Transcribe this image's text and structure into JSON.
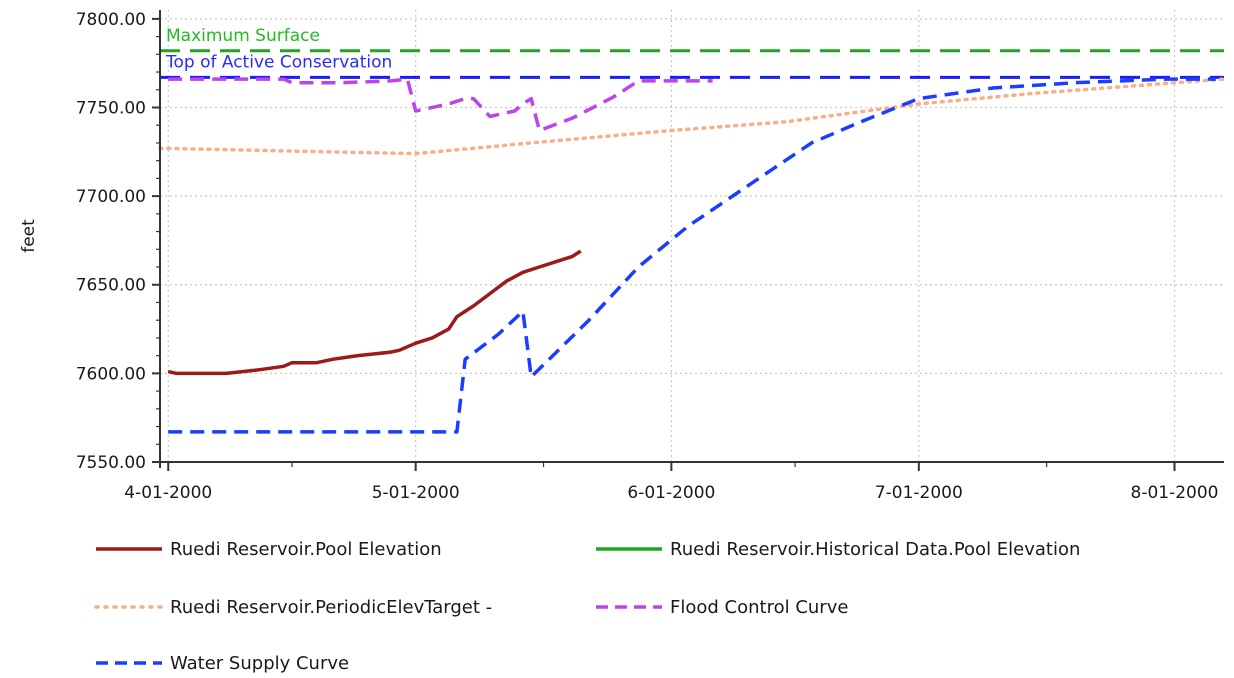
{
  "chart_data": {
    "type": "line",
    "xlabel": "",
    "ylabel": "feet",
    "xlim": [
      "2000-03-31",
      "2000-08-07"
    ],
    "ylim": [
      7550,
      7805
    ],
    "x_ticks": [
      {
        "date": "2000-04-01",
        "label": "4-01-2000"
      },
      {
        "date": "2000-05-01",
        "label": "5-01-2000"
      },
      {
        "date": "2000-06-01",
        "label": "6-01-2000"
      },
      {
        "date": "2000-07-01",
        "label": "7-01-2000"
      },
      {
        "date": "2000-08-01",
        "label": "8-01-2000"
      }
    ],
    "y_ticks": [
      {
        "value": 7550,
        "label": "7550.00"
      },
      {
        "value": 7600,
        "label": "7600.00"
      },
      {
        "value": 7650,
        "label": "7650.00"
      },
      {
        "value": 7700,
        "label": "7700.00"
      },
      {
        "value": 7750,
        "label": "7750.00"
      },
      {
        "value": 7800,
        "label": "7800.00"
      }
    ],
    "grid": true,
    "reference_lines": [
      {
        "name": "Maximum Surface",
        "value": 7782,
        "color": "#1fa51f",
        "text_color": "#22bb22"
      },
      {
        "name": "Top of Active Conservation",
        "value": 7767,
        "color": "#1a1aff",
        "text_color": "#2a2aff"
      }
    ],
    "series": [
      {
        "name": "Ruedi Reservoir.Pool Elevation",
        "color": "#9b1a1a",
        "style": "solid",
        "points": [
          [
            "2000-04-01",
            7601
          ],
          [
            "2000-04-02",
            7600
          ],
          [
            "2000-04-05",
            7600
          ],
          [
            "2000-04-08",
            7600
          ],
          [
            "2000-04-10",
            7601
          ],
          [
            "2000-04-12",
            7602
          ],
          [
            "2000-04-15",
            7604
          ],
          [
            "2000-04-16",
            7606
          ],
          [
            "2000-04-19",
            7606
          ],
          [
            "2000-04-21",
            7608
          ],
          [
            "2000-04-24",
            7610
          ],
          [
            "2000-04-26",
            7611
          ],
          [
            "2000-04-28",
            7612
          ],
          [
            "2000-04-29",
            7613
          ],
          [
            "2000-05-01",
            7617
          ],
          [
            "2000-05-03",
            7620
          ],
          [
            "2000-05-05",
            7625
          ],
          [
            "2000-05-06",
            7632
          ],
          [
            "2000-05-08",
            7638
          ],
          [
            "2000-05-10",
            7645
          ],
          [
            "2000-05-12",
            7652
          ],
          [
            "2000-05-14",
            7657
          ],
          [
            "2000-05-16",
            7660
          ],
          [
            "2000-05-18",
            7663
          ],
          [
            "2000-05-20",
            7666
          ],
          [
            "2000-05-21",
            7669
          ]
        ]
      },
      {
        "name": "Ruedi Reservoir.Historical Data.Pool Elevation",
        "color": "#1fa51f",
        "style": "solid",
        "points": []
      },
      {
        "name": "Ruedi Reservoir.PeriodicElevTarget -",
        "color": "#f4b08a",
        "style": "dotted",
        "points": [
          [
            "2000-03-31",
            7727
          ],
          [
            "2000-04-10",
            7726
          ],
          [
            "2000-04-20",
            7725
          ],
          [
            "2000-05-01",
            7724
          ],
          [
            "2000-05-15",
            7730
          ],
          [
            "2000-06-01",
            7737
          ],
          [
            "2000-06-15",
            7742
          ],
          [
            "2000-07-01",
            7752
          ],
          [
            "2000-07-15",
            7758
          ],
          [
            "2000-08-07",
            7766
          ]
        ]
      },
      {
        "name": "Flood Control Curve",
        "color": "#bb44ee",
        "style": "dashed",
        "points": [
          [
            "2000-04-01",
            7766
          ],
          [
            "2000-04-15",
            7766
          ],
          [
            "2000-04-16",
            7764
          ],
          [
            "2000-04-22",
            7764
          ],
          [
            "2000-04-28",
            7765
          ],
          [
            "2000-04-30",
            7766
          ],
          [
            "2000-05-01",
            7748
          ],
          [
            "2000-05-05",
            7752
          ],
          [
            "2000-05-07",
            7755
          ],
          [
            "2000-05-08",
            7755
          ],
          [
            "2000-05-10",
            7745
          ],
          [
            "2000-05-13",
            7748
          ],
          [
            "2000-05-14",
            7752
          ],
          [
            "2000-05-15",
            7755
          ],
          [
            "2000-05-16",
            7737
          ],
          [
            "2000-05-20",
            7744
          ],
          [
            "2000-05-25",
            7756
          ],
          [
            "2000-05-28",
            7765
          ],
          [
            "2000-06-06",
            7765
          ]
        ]
      },
      {
        "name": "Water Supply Curve",
        "color": "#1a3dff",
        "style": "dashed",
        "points": [
          [
            "2000-04-01",
            7567
          ],
          [
            "2000-05-06",
            7567
          ],
          [
            "2000-05-07",
            7608
          ],
          [
            "2000-05-11",
            7622
          ],
          [
            "2000-05-14",
            7635
          ],
          [
            "2000-05-15",
            7598
          ],
          [
            "2000-05-22",
            7630
          ],
          [
            "2000-05-28",
            7660
          ],
          [
            "2000-06-03",
            7683
          ],
          [
            "2000-06-10",
            7705
          ],
          [
            "2000-06-18",
            7730
          ],
          [
            "2000-06-24",
            7742
          ],
          [
            "2000-07-01",
            7755
          ],
          [
            "2000-07-10",
            7761
          ],
          [
            "2000-07-20",
            7764
          ],
          [
            "2000-07-31",
            7766
          ],
          [
            "2000-08-06",
            7766
          ]
        ]
      }
    ],
    "legend_position": "bottom"
  }
}
